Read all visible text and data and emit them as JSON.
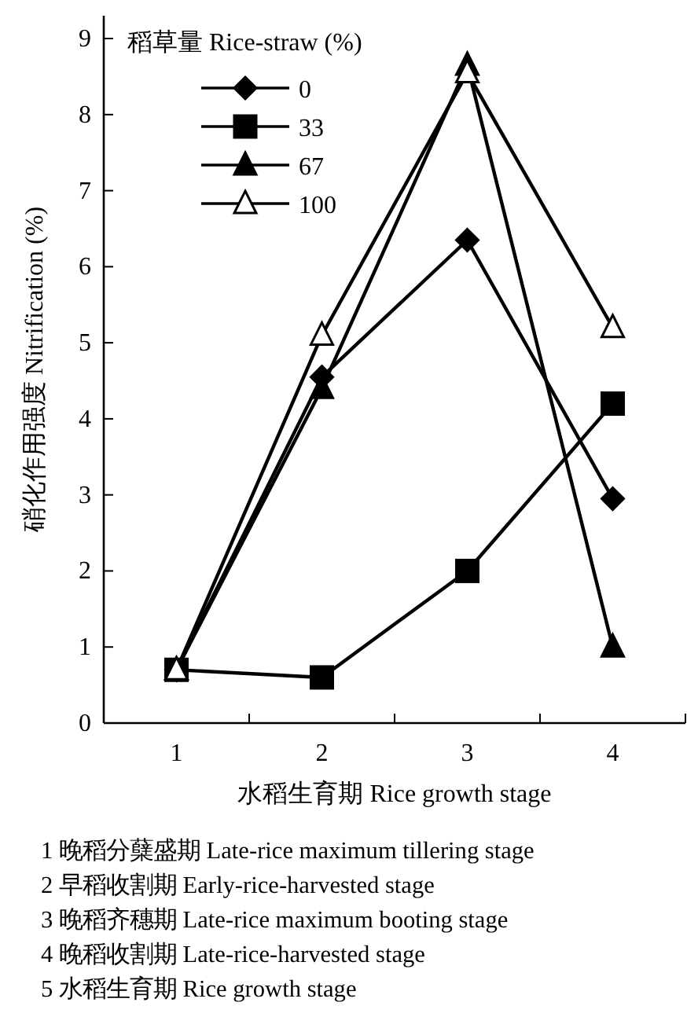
{
  "chart_data": {
    "type": "line",
    "xlabel": "水稻生育期 Rice growth stage",
    "ylabel": "硝化作用强度 Nitrification (%)",
    "legend_title": "稻草量 Rice-straw (%)",
    "legend": "top left",
    "grid": false,
    "categories": [
      "1",
      "2",
      "3",
      "4"
    ],
    "ylim": [
      0,
      9.3
    ],
    "yticks": [
      0,
      1,
      2,
      3,
      4,
      5,
      6,
      7,
      8,
      9
    ],
    "series": [
      {
        "name": "0",
        "color": "#000000",
        "marker": "diamond",
        "values": [
          0.7,
          4.55,
          6.35,
          2.95
        ]
      },
      {
        "name": "33",
        "color": "#000000",
        "marker": "square",
        "values": [
          0.7,
          0.6,
          2.0,
          4.2
        ]
      },
      {
        "name": "67",
        "color": "#000000",
        "marker": "triangle",
        "values": [
          0.7,
          4.4,
          8.65,
          1.0
        ]
      },
      {
        "name": "100",
        "color": "#000000",
        "marker": "triangle",
        "values": [
          0.7,
          5.1,
          8.55,
          5.2
        ]
      }
    ],
    "annotations": [
      "1 晚稻分蘖盛期 Late-rice maximum tillering stage",
      "2 早稻收割期 Early-rice-harvested stage",
      "3 晚稻齐穗期 Late-rice maximum booting stage",
      "4 晚稻收割期 Late-rice-harvested stage",
      "5 水稻生育期 Rice growth stage"
    ]
  }
}
